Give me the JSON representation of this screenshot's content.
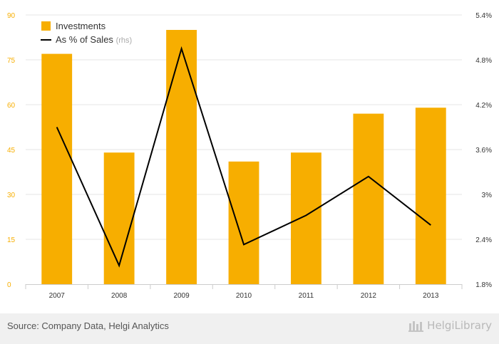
{
  "chart_data": {
    "type": "bar",
    "categories": [
      "2007",
      "2008",
      "2009",
      "2010",
      "2011",
      "2012",
      "2013"
    ],
    "series": [
      {
        "name": "Investments",
        "type": "bar",
        "axis": "left",
        "color": "#f7ae00",
        "values": [
          77,
          44,
          85,
          41,
          44,
          57,
          59
        ]
      },
      {
        "name": "As % of Sales",
        "name_suffix": "(rhs)",
        "type": "line",
        "axis": "right",
        "color": "#000000",
        "values": [
          3.9,
          2.05,
          4.95,
          2.33,
          2.72,
          3.24,
          2.59
        ]
      }
    ],
    "y_left": {
      "ylim": [
        0,
        90
      ],
      "ticks": [
        "0",
        "15",
        "30",
        "45",
        "60",
        "75",
        "90"
      ],
      "tick_values": [
        0,
        15,
        30,
        45,
        60,
        75,
        90
      ],
      "tick_color": "#f7ae00"
    },
    "y_right": {
      "ylim": [
        1.8,
        5.4
      ],
      "ticks": [
        "1.8%",
        "2.4%",
        "3%",
        "3.6%",
        "4.2%",
        "4.8%",
        "5.4%"
      ],
      "tick_values": [
        1.8,
        2.4,
        3.0,
        3.6,
        4.2,
        4.8,
        5.4
      ]
    },
    "grid": true,
    "legend_position": "top-left"
  },
  "footer": {
    "source": "Source: Company Data, Helgi Analytics",
    "brand": "HelgiLibrary"
  }
}
